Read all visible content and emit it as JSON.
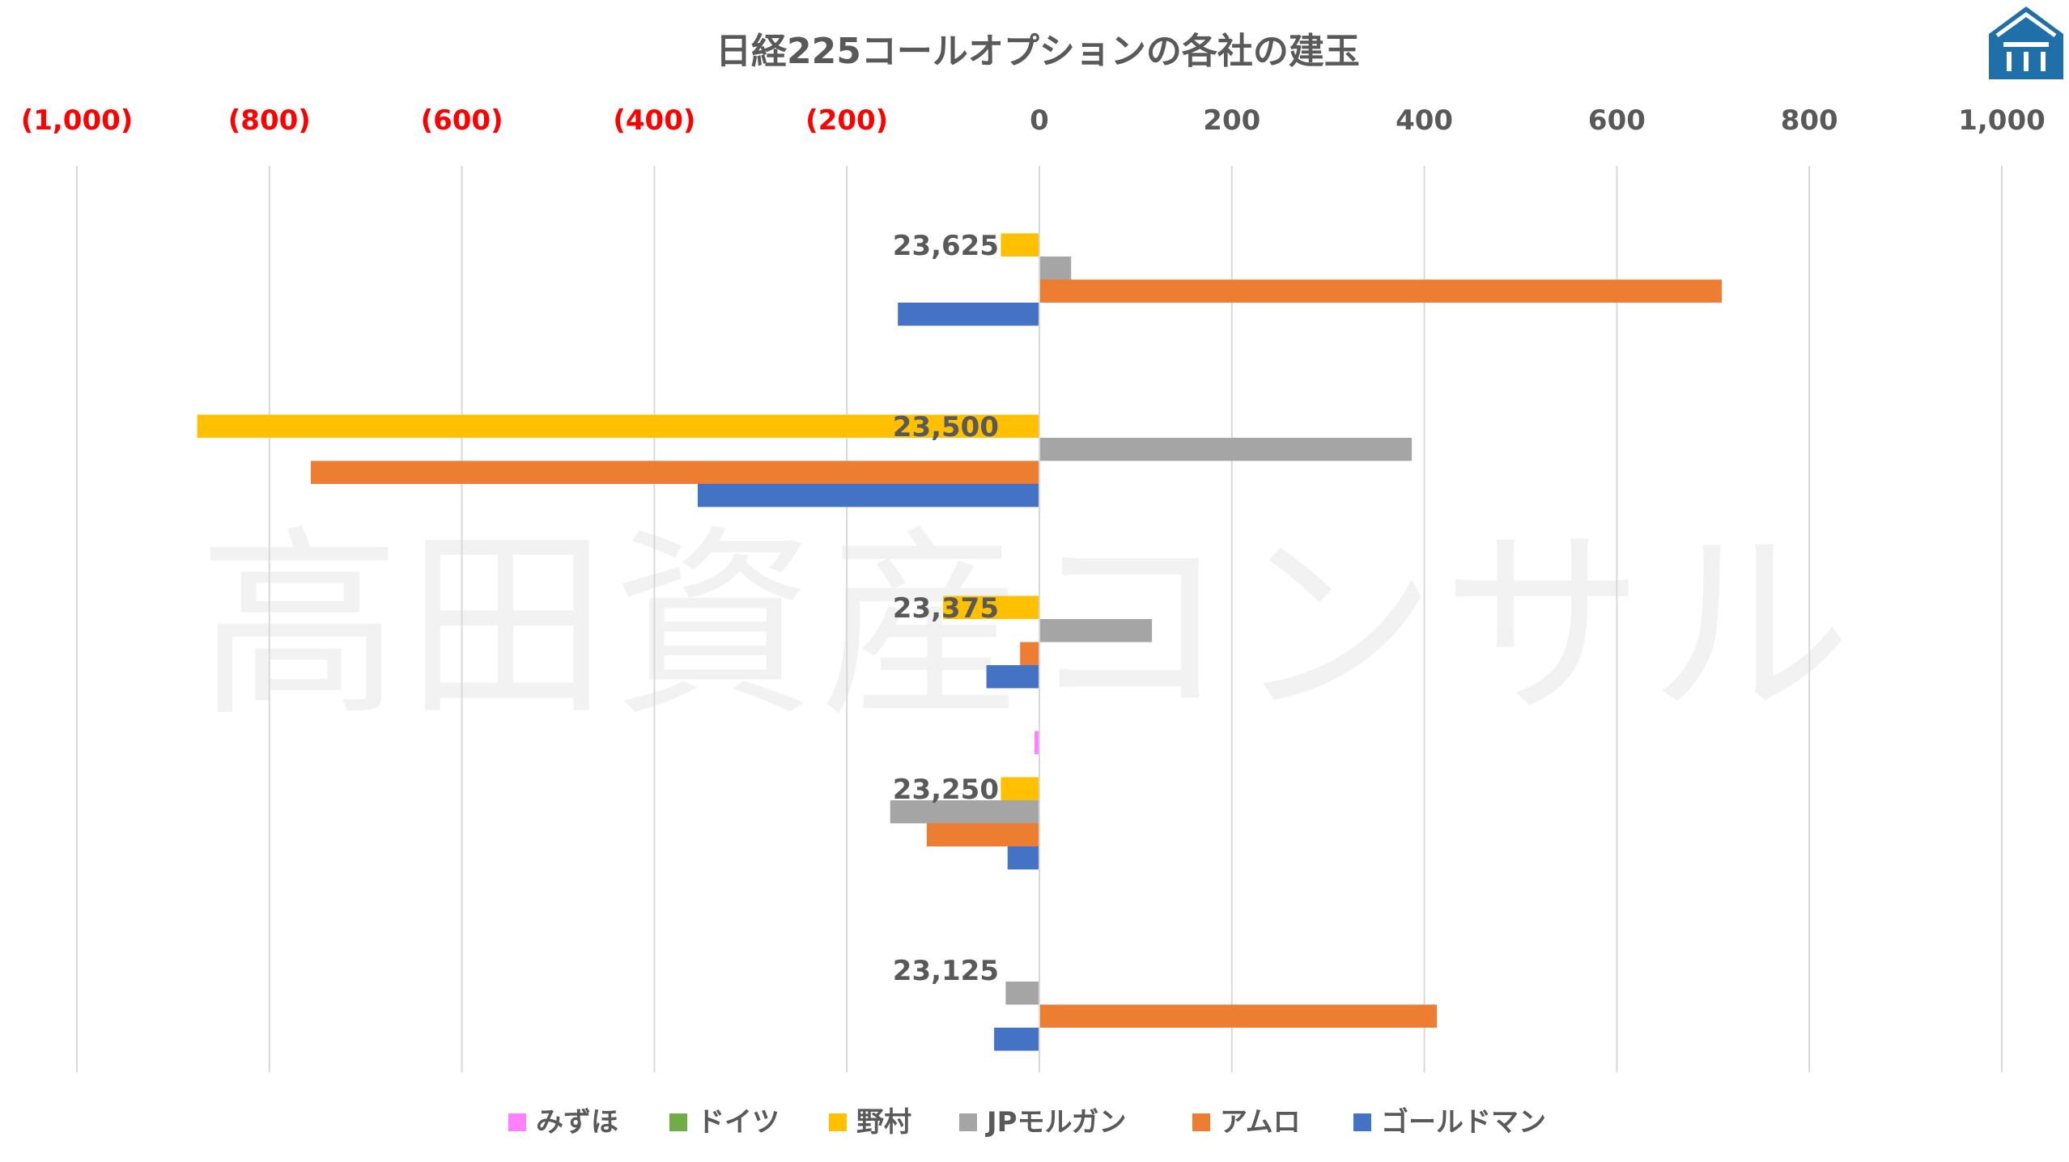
{
  "watermark": "高田資産コンサル",
  "chart_data": {
    "type": "bar",
    "orientation": "horizontal",
    "title": "日経225コールオプションの各社の建玉",
    "xlabel": "",
    "ylabel": "",
    "xlim": [
      -1000,
      1000
    ],
    "x_ticks": [
      {
        "value": -1000,
        "label": "(1,000)"
      },
      {
        "value": -800,
        "label": "(800)"
      },
      {
        "value": -600,
        "label": "(600)"
      },
      {
        "value": -400,
        "label": "(400)"
      },
      {
        "value": -200,
        "label": "(200)"
      },
      {
        "value": 0,
        "label": "0"
      },
      {
        "value": 200,
        "label": "200"
      },
      {
        "value": 400,
        "label": "400"
      },
      {
        "value": 600,
        "label": "600"
      },
      {
        "value": 800,
        "label": "800"
      },
      {
        "value": 1000,
        "label": "1,000"
      }
    ],
    "negative_tick_color": "#FF0000",
    "positive_tick_color": "#595959",
    "grid": true,
    "legend_position": "bottom",
    "categories": [
      "23,625",
      "23,500",
      "23,375",
      "23,250",
      "23,125"
    ],
    "series": [
      {
        "name": "みずほ",
        "color": "#FF80FF",
        "values": [
          0,
          0,
          0,
          -5,
          0
        ]
      },
      {
        "name": "ドイツ",
        "color": "#70AD47",
        "values": [
          0,
          0,
          0,
          0,
          0
        ]
      },
      {
        "name": "野村",
        "color": "#FFC000",
        "values": [
          -40,
          -875,
          -100,
          -40,
          0
        ]
      },
      {
        "name": "JPモルガン",
        "color": "#A5A5A5",
        "values": [
          33,
          387,
          117,
          -155,
          -35
        ]
      },
      {
        "name": "アムロ",
        "color": "#ED7D31",
        "values": [
          709,
          -757,
          -20,
          -117,
          413
        ]
      },
      {
        "name": "ゴールドマン",
        "color": "#4472C4",
        "values": [
          -147,
          -355,
          -55,
          -33,
          -47
        ]
      }
    ]
  },
  "logo": {
    "name": "takata-logo-icon",
    "color": "#1F6FA8"
  }
}
